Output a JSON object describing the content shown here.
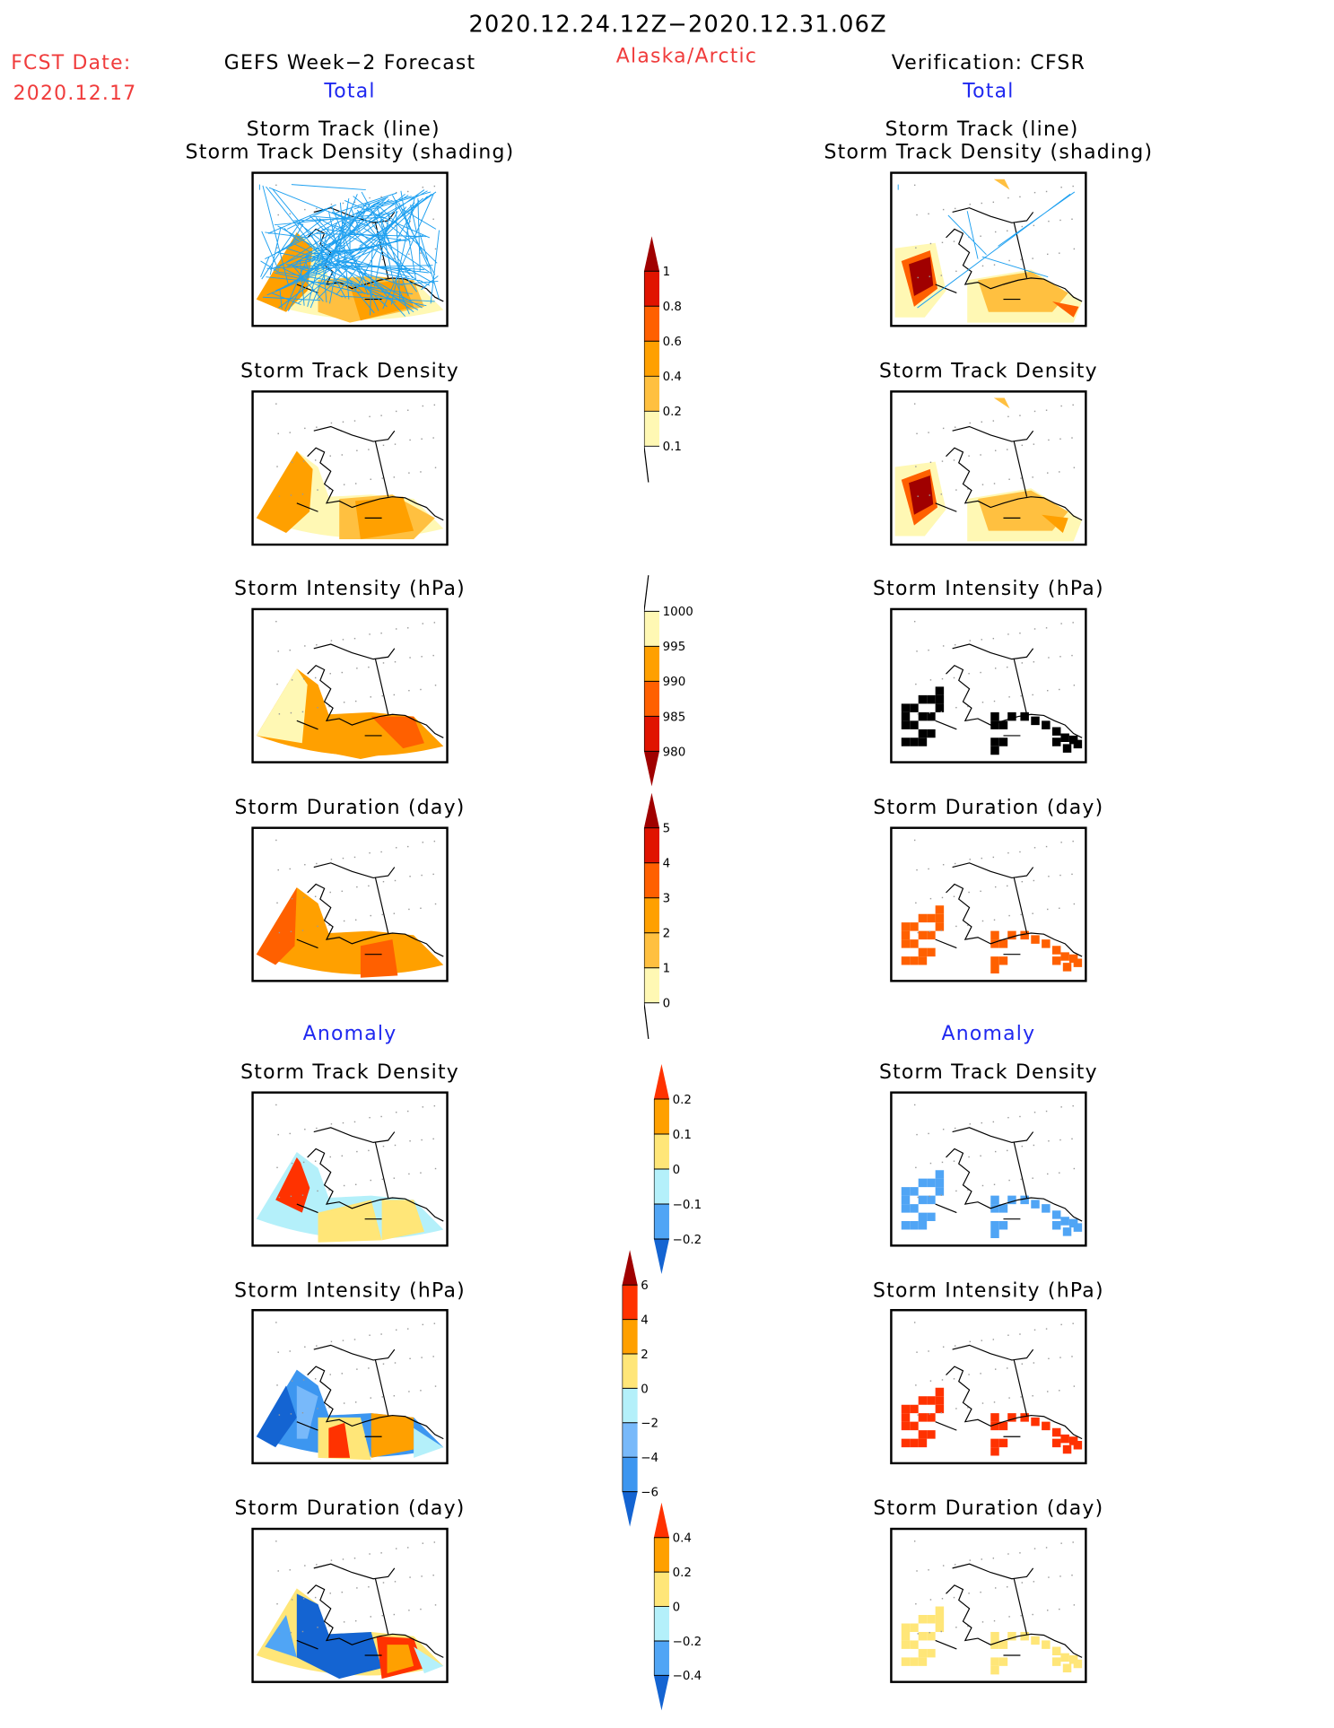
{
  "header": {
    "title": "2020.12.24.12Z−2020.12.31.06Z",
    "fcst_label": "FCST Date:",
    "fcst_date": "2020.12.17",
    "region": "Alaska/Arctic",
    "left_title": "GEFS Week−2 Forecast",
    "right_title": "Verification: CFSR",
    "total_label": "Total",
    "anomaly_label": "Anomaly"
  },
  "panel_titles": {
    "track_line": "Storm Track (line)",
    "track_shading": "Storm Track Density (shading)",
    "density": "Storm Track Density",
    "intensity": "Storm Intensity (hPa)",
    "duration": "Storm Duration (day)"
  },
  "colors": {
    "title_red": "#f03c3c",
    "label_blue": "#1f28f0",
    "track_line": "#1ea0f0"
  },
  "chart_data": [
    {
      "type": "heatmap",
      "name": "density_total",
      "levels": [
        "0.1",
        "0.2",
        "0.4",
        "0.6",
        "0.8",
        "1"
      ],
      "colors": [
        "#fff8b4",
        "#ffc040",
        "#ffa000",
        "#ff6000",
        "#e01400",
        "#a00000"
      ],
      "extend": "max"
    },
    {
      "type": "heatmap",
      "name": "intensity_total",
      "levels": [
        "980",
        "985",
        "990",
        "995",
        "1000"
      ],
      "colors": [
        "#a00000",
        "#e01400",
        "#ff6000",
        "#ffa000",
        "#fff8b4"
      ],
      "extend": "min"
    },
    {
      "type": "heatmap",
      "name": "duration_total",
      "levels": [
        "0",
        "1",
        "2",
        "3",
        "4",
        "5"
      ],
      "colors": [
        "#fff8b4",
        "#ffc040",
        "#ffa000",
        "#ff6000",
        "#e01400",
        "#a00000"
      ],
      "extend": "max"
    },
    {
      "type": "heatmap",
      "name": "density_anomaly",
      "levels": [
        "−0.2",
        "−0.1",
        "0",
        "0.1",
        "0.2"
      ],
      "colors": [
        "#1464d2",
        "#50a5f5",
        "#b4f0fa",
        "#ffe678",
        "#ffa000",
        "#ff3200"
      ],
      "extend": "both"
    },
    {
      "type": "heatmap",
      "name": "intensity_anomaly",
      "levels": [
        "−6",
        "−4",
        "−2",
        "0",
        "2",
        "4",
        "6"
      ],
      "colors": [
        "#1464d2",
        "#3c96f0",
        "#78b9fa",
        "#b4f0fa",
        "#ffe678",
        "#ffa000",
        "#ff3200",
        "#a00000"
      ],
      "extend": "both"
    },
    {
      "type": "heatmap",
      "name": "duration_anomaly",
      "levels": [
        "−0.4",
        "−0.2",
        "0",
        "0.2",
        "0.4"
      ],
      "colors": [
        "#1464d2",
        "#50a5f5",
        "#b4f0fa",
        "#ffe678",
        "#ffa000",
        "#ff3200"
      ],
      "extend": "both"
    }
  ]
}
